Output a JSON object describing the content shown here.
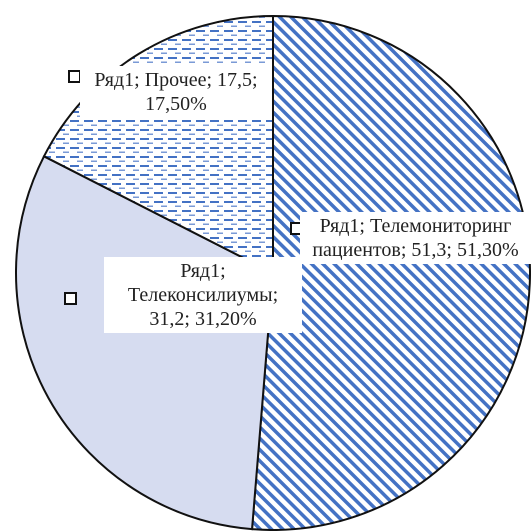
{
  "chart_data": {
    "type": "pie",
    "categories": [
      "Телемониторинг пациентов",
      "Телеконсилиумы",
      "Прочее"
    ],
    "series": [
      {
        "name": "Ряд1",
        "values": [
          51.3,
          31.2,
          17.5
        ],
        "value_labels": [
          "51,3",
          "31,2",
          "17,5"
        ],
        "percent_labels": [
          "51,30%",
          "31,20%",
          "17,50%"
        ],
        "colors": [
          "#4472c4",
          "#d6dcf0",
          "#4472c4"
        ]
      }
    ],
    "separator": "; "
  }
}
